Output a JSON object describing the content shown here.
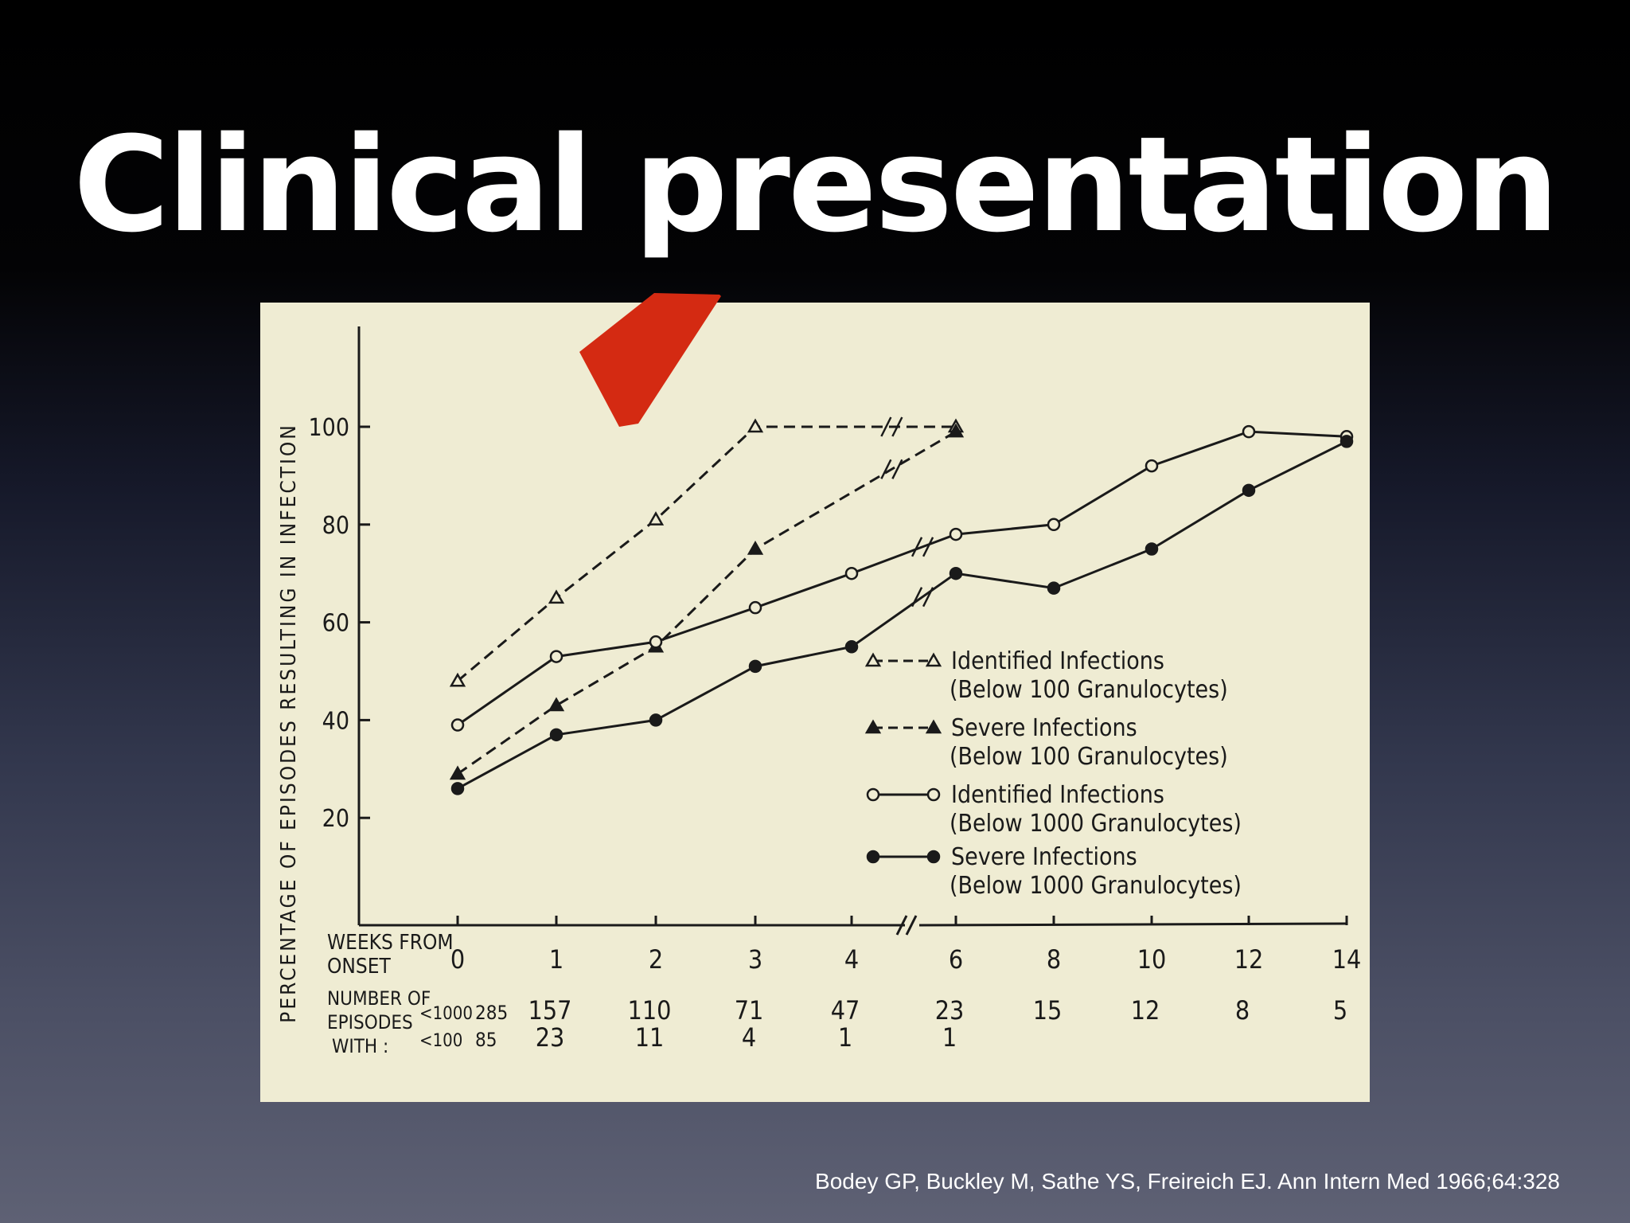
{
  "slide": {
    "title": "Clinical presentation",
    "citation": "Bodey GP, Buckley M, Sathe YS, Freireich EJ. Ann Intern Med 1966;64:328",
    "arrow_color": "#d42a12"
  },
  "chart_data": {
    "type": "line",
    "ylabel": "PERCENTAGE OF EPISODES RESULTING IN INFECTION",
    "xlabel": "WEEKS FROM ONSET",
    "yticks": [
      20,
      40,
      60,
      80,
      100
    ],
    "ylim": [
      0,
      120
    ],
    "x_categories": [
      "0",
      "1",
      "2",
      "3",
      "4",
      "6",
      "8",
      "10",
      "12",
      "14"
    ],
    "axis_break_between": [
      "4",
      "6"
    ],
    "series": [
      {
        "name": "Identified Infections (Below 100 Granulocytes)",
        "legend_line1": "Identified  Infections",
        "legend_line2": "(Below 100 Granulocytes)",
        "marker": "open-triangle",
        "line": "dashed",
        "x": [
          "0",
          "1",
          "2",
          "3",
          "6"
        ],
        "values": [
          48,
          65,
          81,
          100,
          100
        ]
      },
      {
        "name": "Severe Infections (Below 100 Granulocytes)",
        "legend_line1": "Severe Infections",
        "legend_line2": "(Below 100 Granulocytes)",
        "marker": "filled-triangle",
        "line": "dashed",
        "x": [
          "0",
          "1",
          "2",
          "3",
          "6"
        ],
        "values": [
          29,
          43,
          55,
          75,
          99
        ]
      },
      {
        "name": "Identified Infections (Below 1000 Granulocytes)",
        "legend_line1": "Identified  Infections",
        "legend_line2": "(Below 1000 Granulocytes)",
        "marker": "open-circle",
        "line": "solid",
        "x": [
          "0",
          "1",
          "2",
          "3",
          "4",
          "6",
          "8",
          "10",
          "12",
          "14"
        ],
        "values": [
          39,
          53,
          56,
          63,
          70,
          78,
          80,
          92,
          99,
          98
        ]
      },
      {
        "name": "Severe Infections (Below 1000 Granulocytes)",
        "legend_line1": "Severe Infections",
        "legend_line2": "(Below 1000 Granulocytes)",
        "marker": "filled-circle",
        "line": "solid",
        "x": [
          "0",
          "1",
          "2",
          "3",
          "4",
          "6",
          "8",
          "10",
          "12",
          "14"
        ],
        "values": [
          26,
          37,
          40,
          51,
          55,
          70,
          67,
          75,
          87,
          97
        ]
      }
    ],
    "episodes_table": {
      "row_label_lines": [
        "NUMBER OF",
        "EPISODES",
        "WITH :"
      ],
      "rows": [
        {
          "label": "<1000",
          "values": [
            "285",
            "157",
            "110",
            "71",
            "47",
            "23",
            "15",
            "12",
            "8",
            "5"
          ]
        },
        {
          "label": "<100",
          "values": [
            "85",
            "23",
            "11",
            "4",
            "1",
            "1",
            "",
            "",
            "",
            ""
          ]
        }
      ]
    }
  }
}
